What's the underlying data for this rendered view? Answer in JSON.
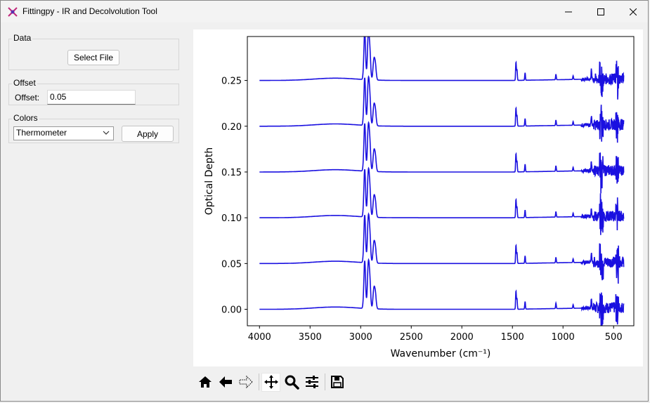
{
  "window": {
    "title": "Fittingpy - IR and Decolvolution Tool"
  },
  "data_group": {
    "title": "Data",
    "select_file_label": "Select File"
  },
  "offset_group": {
    "title": "Offset",
    "offset_label": "Offset:",
    "offset_value": "0.05"
  },
  "colors_group": {
    "title": "Colors",
    "selected_colormap": "Thermometer",
    "apply_label": "Apply"
  },
  "toolbar": {
    "icons": [
      "home-icon",
      "back-icon",
      "forward-icon",
      "pan-icon",
      "zoom-icon",
      "configure-subplots-icon",
      "save-icon"
    ],
    "active": "pan-icon"
  },
  "chart_data": {
    "type": "line",
    "title": "",
    "xlabel": "Wavenumber (cm⁻¹)",
    "ylabel": "Optical Depth",
    "xlim": [
      4120,
      300
    ],
    "ylim": [
      -0.018,
      0.298
    ],
    "x_ticks": [
      4000,
      3500,
      3000,
      2500,
      2000,
      1500,
      1000,
      500
    ],
    "y_ticks": [
      0.0,
      0.05,
      0.1,
      0.15,
      0.2,
      0.25
    ],
    "y_tick_labels": [
      "0.00",
      "0.05",
      "0.10",
      "0.15",
      "0.20",
      "0.25"
    ],
    "x_range": [
      4000,
      400
    ],
    "series_offsets": [
      0.0,
      0.05,
      0.1,
      0.15,
      0.2,
      0.25
    ],
    "line_color": "#1a10e0",
    "grid": false,
    "peaks": [
      {
        "x": 2960,
        "height": 0.052
      },
      {
        "x": 2925,
        "height": 0.045
      },
      {
        "x": 2910,
        "height": 0.03
      },
      {
        "x": 2870,
        "height": 0.02
      },
      {
        "x": 2855,
        "height": 0.016
      },
      {
        "x": 1465,
        "height": 0.02
      },
      {
        "x": 1455,
        "height": 0.012
      },
      {
        "x": 1375,
        "height": 0.008
      },
      {
        "x": 1070,
        "height": 0.006
      },
      {
        "x": 900,
        "height": 0.004
      },
      {
        "x": 720,
        "height": 0.01
      }
    ]
  }
}
